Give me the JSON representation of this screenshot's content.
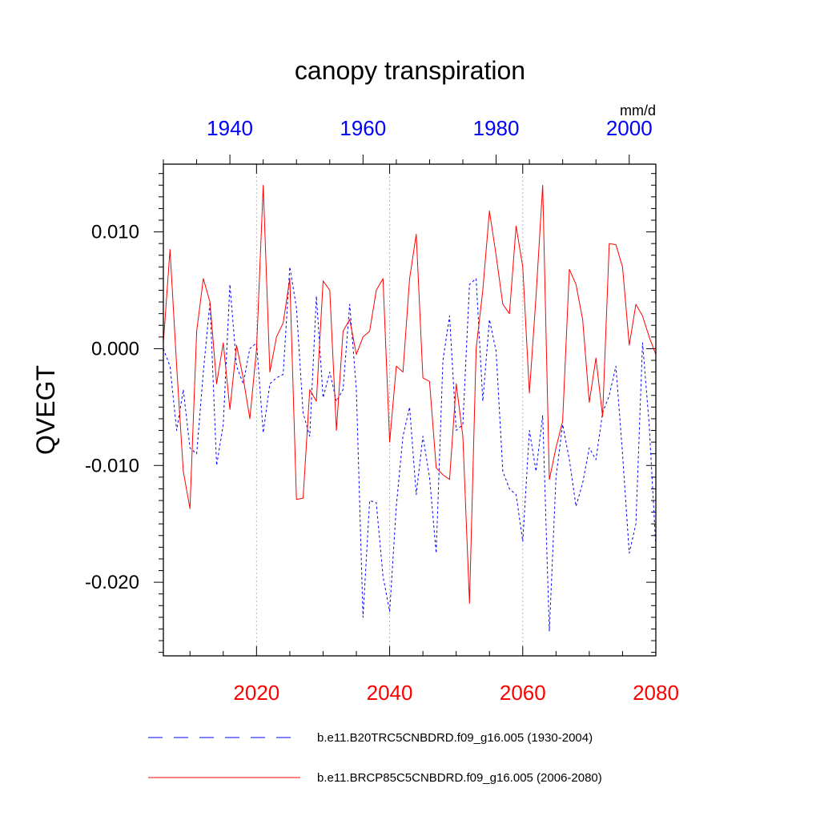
{
  "colors": {
    "series_1": "#0000ff",
    "series_2": "#ff0000",
    "top_axis_labels": "#0000ff",
    "bottom_axis_labels": "#ff0000",
    "gridline": "#b4b4b4",
    "frame": "#000000"
  },
  "chart_data": {
    "type": "line",
    "title": "canopy transpiration",
    "units": "mm/d",
    "ylabel": "QVEGT",
    "xlabel": "",
    "ylim": [
      -0.0263,
      0.0158
    ],
    "yticks": [
      -0.02,
      -0.01,
      0.0,
      0.01
    ],
    "ytick_labels": [
      "-0.020",
      "-0.010",
      "0.000",
      "0.010"
    ],
    "x_bottom": {
      "range": [
        2006,
        2080
      ],
      "ticks": [
        2020,
        2040,
        2060,
        2080
      ],
      "tick_labels": [
        "2020",
        "2040",
        "2060",
        "2080"
      ]
    },
    "x_top": {
      "range": [
        1930,
        2004
      ],
      "ticks": [
        1940,
        1960,
        1980,
        2000
      ],
      "tick_labels": [
        "1940",
        "1960",
        "1980",
        "2000"
      ]
    },
    "grid": "vertical dotted lines at bottom-axis major ticks",
    "legend_position": "bottom",
    "series": [
      {
        "name": "b.e11.B20TRC5CNBDRD.f09_g16.005 (1930-2004)",
        "axis": "top",
        "style": "dashed",
        "x": [
          1930,
          1931,
          1932,
          1933,
          1934,
          1935,
          1936,
          1937,
          1938,
          1939,
          1940,
          1941,
          1942,
          1943,
          1944,
          1945,
          1946,
          1947,
          1948,
          1949,
          1950,
          1951,
          1952,
          1953,
          1954,
          1955,
          1956,
          1957,
          1958,
          1959,
          1960,
          1961,
          1962,
          1963,
          1964,
          1965,
          1966,
          1967,
          1968,
          1969,
          1970,
          1971,
          1972,
          1973,
          1974,
          1975,
          1976,
          1977,
          1978,
          1979,
          1980,
          1981,
          1982,
          1983,
          1984,
          1985,
          1986,
          1987,
          1988,
          1989,
          1990,
          1991,
          1992,
          1993,
          1994,
          1995,
          1996,
          1997,
          1998,
          1999,
          2000,
          2001,
          2002,
          2003,
          2004
        ],
        "values": [
          0.0,
          -0.0015,
          -0.007,
          -0.0035,
          -0.0085,
          -0.009,
          -0.002,
          0.004,
          -0.01,
          -0.0065,
          0.0055,
          -0.0015,
          -0.003,
          0.0,
          0.0005,
          -0.0072,
          -0.003,
          -0.0025,
          -0.0022,
          0.007,
          0.0035,
          -0.0055,
          -0.0075,
          0.0045,
          -0.0042,
          -0.002,
          -0.0045,
          -0.0035,
          0.0038,
          -0.0035,
          -0.023,
          -0.013,
          -0.0132,
          -0.0195,
          -0.0225,
          -0.0135,
          -0.0075,
          -0.005,
          -0.0125,
          -0.0075,
          -0.011,
          -0.0175,
          -0.001,
          0.0028,
          -0.007,
          -0.0065,
          0.0055,
          0.006,
          -0.0045,
          0.0025,
          -0.0002,
          -0.0105,
          -0.012,
          -0.0125,
          -0.0165,
          -0.007,
          -0.0105,
          -0.0057,
          -0.0242,
          -0.011,
          -0.0065,
          -0.0095,
          -0.0135,
          -0.0115,
          -0.0085,
          -0.0095,
          -0.0055,
          -0.004,
          -0.0015,
          -0.009,
          -0.0175,
          -0.015,
          0.0005,
          -0.0065,
          -0.017
        ]
      },
      {
        "name": "b.e11.BRCP85C5CNBDRD.f09_g16.005 (2006-2080)",
        "axis": "bottom",
        "style": "solid",
        "x": [
          2006,
          2007,
          2008,
          2009,
          2010,
          2011,
          2012,
          2013,
          2014,
          2015,
          2016,
          2017,
          2018,
          2019,
          2020,
          2021,
          2022,
          2023,
          2024,
          2025,
          2026,
          2027,
          2028,
          2029,
          2030,
          2031,
          2032,
          2033,
          2034,
          2035,
          2036,
          2037,
          2038,
          2039,
          2040,
          2041,
          2042,
          2043,
          2044,
          2045,
          2046,
          2047,
          2048,
          2049,
          2050,
          2051,
          2052,
          2053,
          2054,
          2055,
          2056,
          2057,
          2058,
          2059,
          2060,
          2061,
          2062,
          2063,
          2064,
          2065,
          2066,
          2067,
          2068,
          2069,
          2070,
          2071,
          2072,
          2073,
          2074,
          2075,
          2076,
          2077,
          2078,
          2079,
          2080
        ],
        "values": [
          0.0005,
          0.0085,
          -0.0015,
          -0.0105,
          -0.0137,
          0.0015,
          0.006,
          0.004,
          -0.003,
          0.0005,
          -0.0052,
          0.0003,
          -0.0025,
          -0.006,
          0.0,
          0.014,
          -0.002,
          0.001,
          0.0022,
          0.006,
          -0.0129,
          -0.0128,
          -0.0035,
          -0.0045,
          0.0058,
          0.005,
          -0.007,
          0.0015,
          0.0025,
          -0.0005,
          0.001,
          0.0015,
          0.005,
          0.006,
          -0.008,
          -0.0015,
          -0.002,
          0.006,
          0.0098,
          -0.0025,
          -0.0028,
          -0.0102,
          -0.0108,
          -0.0112,
          -0.003,
          -0.0075,
          -0.0218,
          0.0,
          0.005,
          0.0118,
          0.008,
          0.0038,
          0.003,
          0.0105,
          0.007,
          -0.0038,
          0.0045,
          0.014,
          -0.0112,
          -0.0085,
          -0.0062,
          0.0068,
          0.0055,
          0.0025,
          -0.0046,
          -0.0008,
          -0.0058,
          0.009,
          0.0089,
          0.007,
          0.0003,
          0.0038,
          0.0028,
          0.001,
          -0.0005
        ]
      }
    ]
  }
}
